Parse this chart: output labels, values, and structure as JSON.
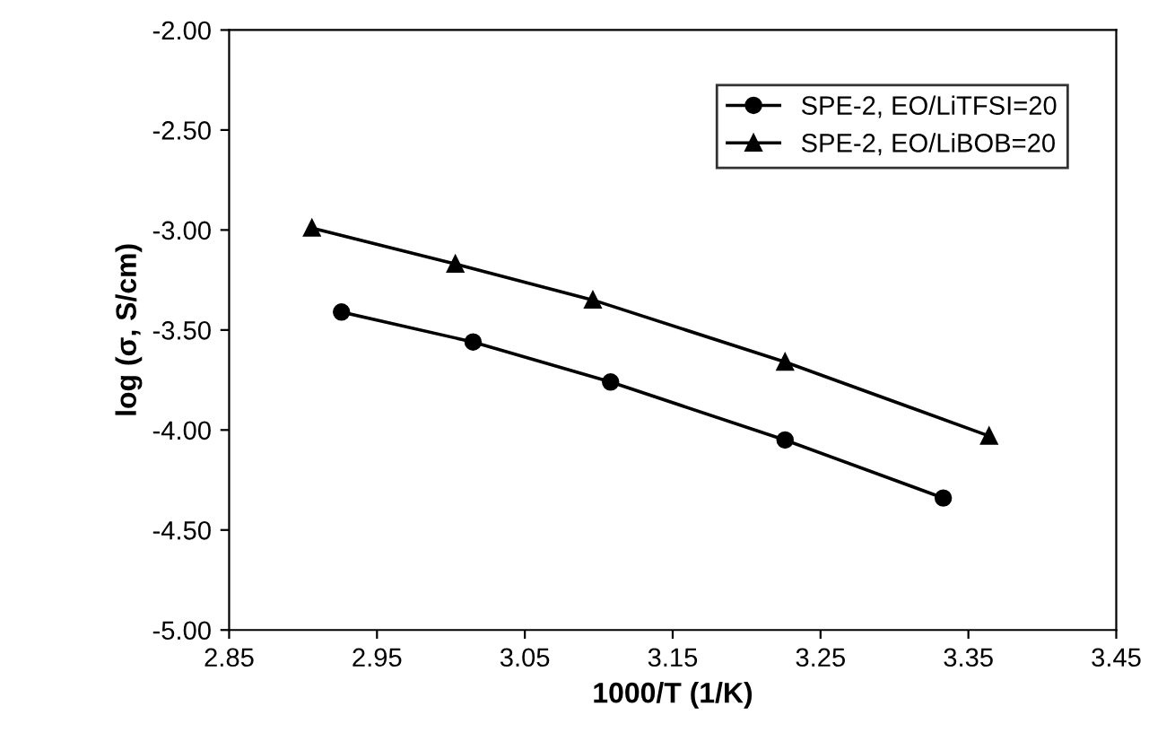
{
  "chart_data": {
    "type": "line",
    "xlabel": "1000/T (1/K)",
    "ylabel": "log (σ, S/cm)",
    "xlim": [
      2.85,
      3.45
    ],
    "xticks": [
      {
        "value": 2.85,
        "label": "2.85"
      },
      {
        "value": 2.95,
        "label": "2.95"
      },
      {
        "value": 3.05,
        "label": "3.05"
      },
      {
        "value": 3.15,
        "label": "3.15"
      },
      {
        "value": 3.25,
        "label": "3.25"
      },
      {
        "value": 3.35,
        "label": "3.35"
      },
      {
        "value": 3.45,
        "label": "3.45"
      }
    ],
    "ylim": [
      -5,
      -2
    ],
    "yticks": [
      {
        "value": -5,
        "label": "-5.00"
      },
      {
        "value": -4.5,
        "label": "-4.50"
      },
      {
        "value": -4,
        "label": "-4.00"
      },
      {
        "value": -3.5,
        "label": "-3.50"
      },
      {
        "value": -3,
        "label": "-3.00"
      },
      {
        "value": -2.5,
        "label": "-2.50"
      },
      {
        "value": -2,
        "label": "-2.00"
      }
    ],
    "grid": false,
    "legend": "top right",
    "line_style": "solid",
    "series": [
      {
        "name": "SPE-2, EO/LiTFSI=20",
        "color": "#000000",
        "marker": "circle",
        "x": [
          2.926,
          3.015,
          3.108,
          3.226,
          3.333
        ],
        "values": [
          -3.41,
          -3.56,
          -3.76,
          -4.05,
          -4.34
        ]
      },
      {
        "name": "SPE-2, EO/LiBOB=20",
        "color": "#000000",
        "marker": "triangle",
        "x": [
          2.906,
          3.003,
          3.096,
          3.226,
          3.364
        ],
        "values": [
          -2.99,
          -3.17,
          -3.35,
          -3.66,
          -4.03
        ]
      }
    ]
  }
}
